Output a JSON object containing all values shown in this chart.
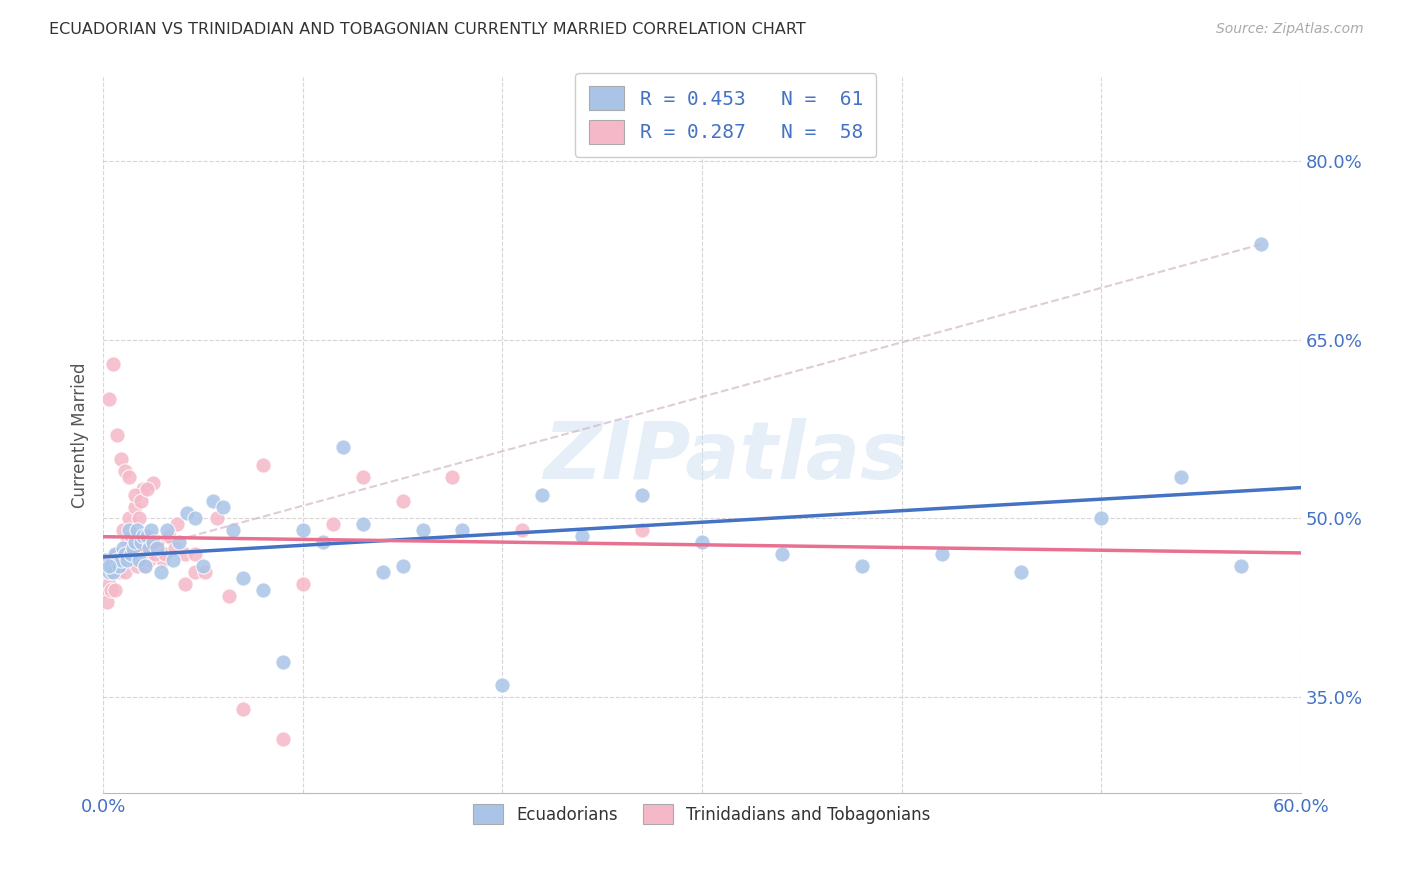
{
  "title": "ECUADORIAN VS TRINIDADIAN AND TOBAGONIAN CURRENTLY MARRIED CORRELATION CHART",
  "source": "Source: ZipAtlas.com",
  "ylabel": "Currently Married",
  "watermark": "ZIPatlas",
  "xlim": [
    0.0,
    0.6
  ],
  "ylim": [
    0.27,
    0.87
  ],
  "xtick_positions": [
    0.0,
    0.1,
    0.2,
    0.3,
    0.4,
    0.5,
    0.6
  ],
  "xtick_labels": [
    "0.0%",
    "",
    "",
    "",
    "",
    "",
    "60.0%"
  ],
  "ytick_positions": [
    0.35,
    0.5,
    0.65,
    0.8
  ],
  "ytick_labels": [
    "35.0%",
    "50.0%",
    "65.0%",
    "80.0%"
  ],
  "blue_color": "#aac4e8",
  "pink_color": "#f5b8c8",
  "blue_line_color": "#4472c4",
  "pink_line_color": "#e87090",
  "pink_dash_color": "#e8a0b0",
  "grid_color": "#cccccc",
  "background_color": "#ffffff",
  "legend_blue_label": "R = 0.453   N =  61",
  "legend_pink_label": "R = 0.287   N =  58",
  "legend_label_color": "#4472c4",
  "ecuadorians_label": "Ecuadorians",
  "trinidadians_label": "Trinidadians and Tobagonians",
  "blue_x": [
    0.001,
    0.002,
    0.003,
    0.004,
    0.005,
    0.006,
    0.007,
    0.008,
    0.009,
    0.01,
    0.011,
    0.012,
    0.013,
    0.014,
    0.015,
    0.016,
    0.017,
    0.018,
    0.019,
    0.02,
    0.021,
    0.022,
    0.023,
    0.024,
    0.025,
    0.027,
    0.029,
    0.032,
    0.035,
    0.038,
    0.042,
    0.046,
    0.05,
    0.055,
    0.06,
    0.065,
    0.07,
    0.08,
    0.09,
    0.1,
    0.11,
    0.12,
    0.13,
    0.14,
    0.15,
    0.16,
    0.18,
    0.2,
    0.22,
    0.24,
    0.27,
    0.3,
    0.34,
    0.38,
    0.42,
    0.46,
    0.5,
    0.54,
    0.57,
    0.003,
    0.58
  ],
  "blue_y": [
    0.465,
    0.46,
    0.455,
    0.46,
    0.455,
    0.47,
    0.465,
    0.46,
    0.465,
    0.475,
    0.47,
    0.465,
    0.49,
    0.47,
    0.475,
    0.48,
    0.49,
    0.465,
    0.48,
    0.485,
    0.46,
    0.485,
    0.475,
    0.49,
    0.48,
    0.475,
    0.455,
    0.49,
    0.465,
    0.48,
    0.505,
    0.5,
    0.46,
    0.515,
    0.51,
    0.49,
    0.45,
    0.44,
    0.38,
    0.49,
    0.48,
    0.56,
    0.495,
    0.455,
    0.46,
    0.49,
    0.49,
    0.36,
    0.52,
    0.485,
    0.52,
    0.48,
    0.47,
    0.46,
    0.47,
    0.455,
    0.5,
    0.535,
    0.46,
    0.46,
    0.73
  ],
  "pink_x": [
    0.001,
    0.002,
    0.003,
    0.004,
    0.005,
    0.006,
    0.007,
    0.008,
    0.009,
    0.01,
    0.011,
    0.012,
    0.013,
    0.014,
    0.015,
    0.016,
    0.017,
    0.018,
    0.019,
    0.02,
    0.021,
    0.022,
    0.023,
    0.024,
    0.025,
    0.027,
    0.03,
    0.033,
    0.037,
    0.041,
    0.046,
    0.051,
    0.057,
    0.063,
    0.07,
    0.08,
    0.09,
    0.1,
    0.115,
    0.13,
    0.15,
    0.175,
    0.21,
    0.27,
    0.003,
    0.005,
    0.007,
    0.009,
    0.011,
    0.013,
    0.016,
    0.019,
    0.022,
    0.026,
    0.031,
    0.036,
    0.041,
    0.046
  ],
  "pink_y": [
    0.44,
    0.43,
    0.445,
    0.44,
    0.455,
    0.44,
    0.47,
    0.455,
    0.46,
    0.49,
    0.455,
    0.48,
    0.5,
    0.485,
    0.465,
    0.51,
    0.46,
    0.5,
    0.475,
    0.525,
    0.46,
    0.485,
    0.465,
    0.48,
    0.53,
    0.48,
    0.465,
    0.485,
    0.495,
    0.445,
    0.455,
    0.455,
    0.5,
    0.435,
    0.34,
    0.545,
    0.315,
    0.445,
    0.495,
    0.535,
    0.515,
    0.535,
    0.49,
    0.49,
    0.6,
    0.63,
    0.57,
    0.55,
    0.54,
    0.535,
    0.52,
    0.515,
    0.525,
    0.47,
    0.47,
    0.475,
    0.47,
    0.47
  ]
}
